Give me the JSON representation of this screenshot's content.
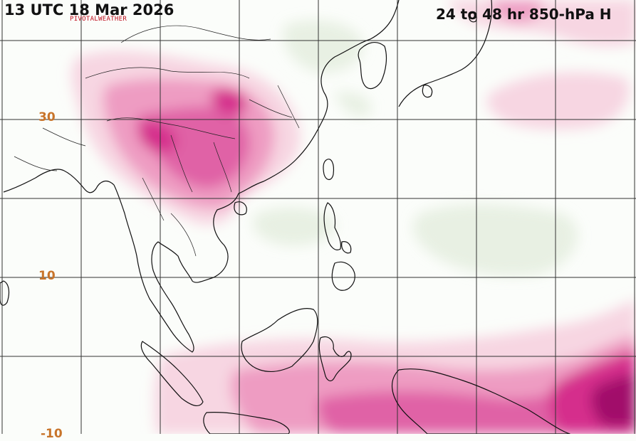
{
  "header": {
    "valid_time": "13 UTC 18 Mar 2026",
    "product": "24 to 48 hr 850-hPa H",
    "credit": "PIVOTALWEATHER"
  },
  "map": {
    "region": "East and Southeast Asia / Western Pacific",
    "latitude_labels": [
      "30",
      "10",
      "-10"
    ],
    "colors": {
      "background": "#fbfdfa",
      "rise_light": "#f7d6e2",
      "rise_mid": "#ee9cc2",
      "rise_strong": "#d52f8c",
      "rise_max": "#a10a6b",
      "fall_light": "#e6efe1",
      "grid": "#333333",
      "coastline": "#111111",
      "label": "#c8742a",
      "credit": "#c0101e"
    }
  }
}
